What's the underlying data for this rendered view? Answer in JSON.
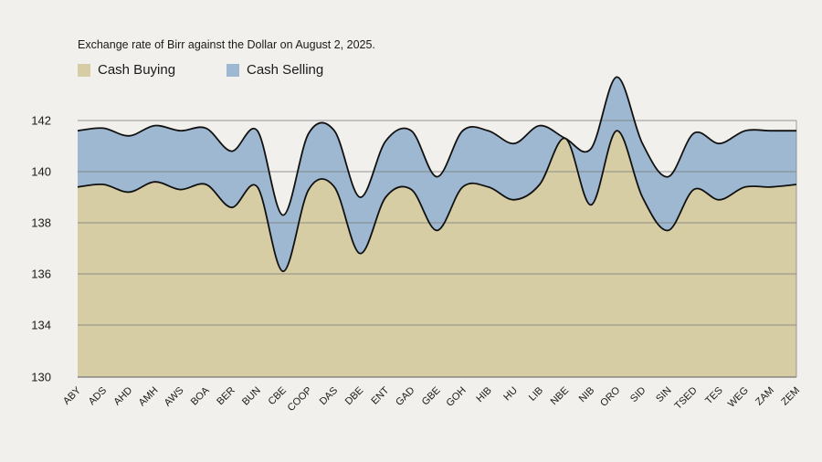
{
  "chart_data": {
    "type": "area",
    "title": "Exchange rate of Birr against the Dollar on August 2, 2025.",
    "categories": [
      "ABY",
      "ADS",
      "AHD",
      "AMH",
      "AWS",
      "BOA",
      "BER",
      "BUN",
      "CBE",
      "COOP",
      "DAS",
      "DBE",
      "ENT",
      "GAD",
      "GBE",
      "GOH",
      "HIB",
      "HU",
      "LIB",
      "NBE",
      "NIB",
      "ORO",
      "SID",
      "SIN",
      "TSED",
      "TES",
      "WEG",
      "ZAM",
      "ZEM"
    ],
    "yticks": [
      "130",
      "134",
      "136",
      "138",
      "140",
      "142"
    ],
    "series": [
      {
        "name": "Cash Selling",
        "color": "#9db8d0",
        "values": [
          141.6,
          141.7,
          141.4,
          141.8,
          141.6,
          141.7,
          140.8,
          141.6,
          138.3,
          141.5,
          141.6,
          139.0,
          141.2,
          141.6,
          139.8,
          141.6,
          141.6,
          141.1,
          141.8,
          141.3,
          140.9,
          143.7,
          141.1,
          139.8,
          141.5,
          141.1,
          141.6,
          141.6,
          141.6
        ]
      },
      {
        "name": "Cash Buying",
        "color": "#d7cda5",
        "values": [
          139.4,
          139.5,
          139.2,
          139.6,
          139.3,
          139.5,
          138.6,
          139.4,
          136.1,
          139.3,
          139.4,
          136.8,
          139.0,
          139.3,
          137.7,
          139.4,
          139.4,
          138.9,
          139.5,
          141.3,
          138.7,
          141.6,
          139.0,
          137.7,
          139.3,
          138.9,
          139.4,
          139.4,
          139.5
        ]
      }
    ]
  }
}
